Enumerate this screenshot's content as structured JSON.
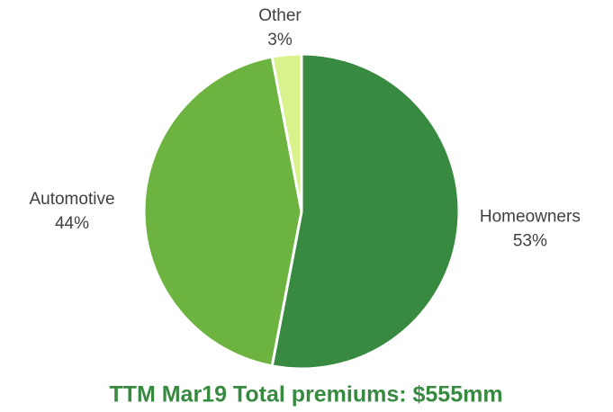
{
  "chart_data": {
    "type": "pie",
    "title": "TTM Mar19 Total premiums: $555mm",
    "categories": [
      "Homeowners",
      "Automotive",
      "Other"
    ],
    "values": [
      53,
      44,
      3
    ],
    "value_labels": [
      "53%",
      "44%",
      "3%"
    ],
    "colors": [
      "#388a41",
      "#6db33f",
      "#d9f28c"
    ]
  }
}
